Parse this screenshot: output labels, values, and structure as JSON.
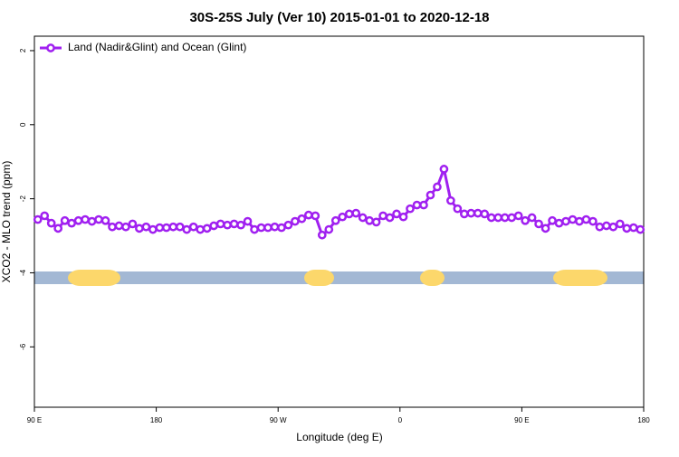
{
  "chart_data": {
    "type": "line",
    "title": "30S-25S July (Ver 10)   2015-01-01 to 2020-12-18",
    "xlabel": "Longitude (deg E)",
    "ylabel": "XCO2 - MLO trend (ppm)",
    "xlim": [
      90,
      540
    ],
    "ylim": [
      -7.63,
      2.39
    ],
    "xticks": [
      {
        "value": 90,
        "label": "90 E"
      },
      180,
      {
        "value": 270,
        "label": "90 W"
      },
      {
        "value": 360,
        "label": "0"
      },
      {
        "value": 450,
        "label": "90 E"
      },
      {
        "value": 540,
        "label": "180"
      }
    ],
    "yticks": [
      2,
      0,
      -2,
      -4,
      -6
    ],
    "legend": "top-left",
    "x": [
      92.5,
      97.5,
      102.5,
      107.5,
      112.5,
      117.5,
      122.5,
      127.5,
      132.5,
      137.5,
      142.5,
      147.5,
      152.5,
      157.5,
      162.5,
      167.5,
      172.5,
      177.5,
      182.5,
      187.5,
      192.5,
      197.5,
      202.5,
      207.5,
      212.5,
      217.5,
      222.5,
      227.5,
      232.5,
      237.5,
      242.5,
      247.5,
      252.5,
      257.5,
      262.5,
      267.5,
      272.5,
      277.5,
      282.5,
      287.5,
      292.5,
      297.5,
      302.5,
      307.5,
      312.5,
      317.5,
      322.5,
      327.5,
      332.5,
      337.5,
      342.5,
      347.5,
      352.5,
      357.5,
      362.5,
      367.5,
      372.5,
      377.5,
      382.5,
      387.5,
      392.5,
      397.5,
      402.5,
      407.5,
      412.5,
      417.5,
      422.5,
      427.5,
      432.5,
      437.5,
      442.5,
      447.5,
      452.5,
      457.5,
      462.5,
      467.5,
      472.5,
      477.5,
      482.5,
      487.5,
      492.5,
      497.5,
      502.5,
      507.5,
      512.5,
      517.5,
      522.5,
      527.5,
      532.5,
      537.5
    ],
    "series": [
      {
        "name": "Land (Nadir&Glint) and Ocean (Glint)",
        "color": "#a020f0",
        "values": [
          -2.56,
          -2.46,
          -2.66,
          -2.8,
          -2.59,
          -2.66,
          -2.59,
          -2.56,
          -2.61,
          -2.56,
          -2.59,
          -2.76,
          -2.73,
          -2.76,
          -2.68,
          -2.8,
          -2.76,
          -2.83,
          -2.78,
          -2.78,
          -2.76,
          -2.76,
          -2.83,
          -2.76,
          -2.83,
          -2.8,
          -2.73,
          -2.68,
          -2.71,
          -2.68,
          -2.71,
          -2.61,
          -2.83,
          -2.78,
          -2.78,
          -2.76,
          -2.78,
          -2.71,
          -2.61,
          -2.54,
          -2.44,
          -2.46,
          -2.98,
          -2.83,
          -2.59,
          -2.49,
          -2.41,
          -2.39,
          -2.51,
          -2.59,
          -2.63,
          -2.46,
          -2.51,
          -2.41,
          -2.49,
          -2.27,
          -2.17,
          -2.17,
          -1.9,
          -1.68,
          -1.2,
          -2.05,
          -2.27,
          -2.41,
          -2.39,
          -2.39,
          -2.41,
          -2.51,
          -2.51,
          -2.51,
          -2.51,
          -2.46,
          -2.59,
          -2.51,
          -2.68,
          -2.8,
          -2.59,
          -2.66,
          -2.61,
          -2.56,
          -2.61,
          -2.56,
          -2.61,
          -2.76,
          -2.73,
          -2.76,
          -2.68,
          -2.8,
          -2.78,
          -2.83
        ]
      }
    ]
  }
}
